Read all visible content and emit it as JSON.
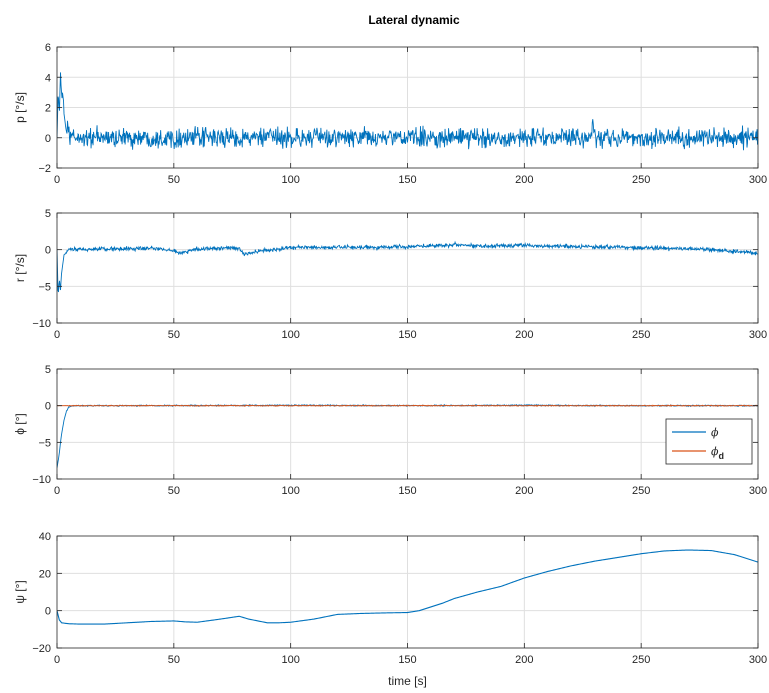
{
  "figure_title": "Lateral dynamic",
  "colors": {
    "primary": "#0072BD",
    "secondary": "#D95319",
    "axis": "#262626",
    "grid": "#DFDFDF"
  },
  "chart_data": [
    {
      "id": "p",
      "type": "line",
      "ylabel": "p [°/s]",
      "xlabel": "",
      "xlim": [
        0,
        300
      ],
      "ylim": [
        -2,
        6
      ],
      "xticks": [
        0,
        50,
        100,
        150,
        200,
        250,
        300
      ],
      "yticks": [
        -2,
        0,
        2,
        4,
        6
      ],
      "grid": true,
      "series": [
        {
          "color": "#0072BD",
          "x": [
            0,
            0.5,
            1,
            1.5,
            2,
            2.5,
            3,
            3.5,
            4,
            4.5,
            5,
            6,
            8,
            10,
            20,
            30,
            50,
            80,
            100,
            150,
            200,
            228,
            229,
            230,
            231,
            250,
            280,
            300
          ],
          "y": [
            0,
            3.2,
            1.5,
            4.2,
            2.6,
            3.0,
            1.7,
            1.0,
            0.4,
            0.6,
            0.1,
            0.05,
            0,
            0,
            0,
            0,
            0,
            0,
            0,
            0,
            0,
            0,
            0.8,
            0,
            0,
            0,
            0,
            0
          ],
          "noise": 0.32
        }
      ]
    },
    {
      "id": "r",
      "type": "line",
      "ylabel": "r [°/s]",
      "xlabel": "",
      "xlim": [
        0,
        300
      ],
      "ylim": [
        -10,
        5
      ],
      "xticks": [
        0,
        50,
        100,
        150,
        200,
        250,
        300
      ],
      "yticks": [
        -10,
        -5,
        0,
        5
      ],
      "grid": true,
      "series": [
        {
          "color": "#0072BD",
          "x": [
            0,
            0.5,
            1,
            1.5,
            2,
            2.5,
            3,
            4,
            5,
            10,
            20,
            30,
            40,
            50,
            52,
            60,
            70,
            78,
            80,
            85,
            100,
            130,
            150,
            170,
            180,
            200,
            210,
            250,
            280,
            300
          ],
          "y": [
            0,
            -6.5,
            -4,
            -5.5,
            -3,
            -2,
            -0.8,
            -0.3,
            0,
            0,
            0.1,
            0.1,
            0.2,
            -0.1,
            -0.5,
            0.1,
            0.2,
            0.2,
            -0.6,
            -0.3,
            0.3,
            0.3,
            0.4,
            0.7,
            0.5,
            0.6,
            0.5,
            0.3,
            0,
            -0.5
          ],
          "noise": 0.14
        }
      ]
    },
    {
      "id": "phi",
      "type": "line",
      "ylabel": "ϕ [°]",
      "xlabel": "",
      "xlim": [
        0,
        300
      ],
      "ylim": [
        -10,
        5
      ],
      "xticks": [
        0,
        50,
        100,
        150,
        200,
        250,
        300
      ],
      "yticks": [
        -10,
        -5,
        0,
        5
      ],
      "grid": true,
      "legend": {
        "placement": "right",
        "entries": [
          "ϕ",
          "ϕ_d"
        ]
      },
      "series": [
        {
          "name": "ϕ",
          "color": "#0072BD",
          "x": [
            0,
            0.5,
            1,
            1.5,
            2,
            3,
            4,
            5,
            6,
            8,
            10,
            50,
            100,
            150,
            200,
            250,
            300
          ],
          "y": [
            -8.5,
            -7.5,
            -6.5,
            -5.0,
            -3.8,
            -2.0,
            -0.8,
            -0.2,
            -0.05,
            0,
            0,
            0,
            0.05,
            0,
            0.05,
            0,
            0
          ],
          "noise": 0.04
        },
        {
          "name": "ϕ_d",
          "color": "#D95319",
          "x": [
            0,
            300
          ],
          "y": [
            0,
            0
          ],
          "noise": 0.03
        }
      ]
    },
    {
      "id": "psi",
      "type": "line",
      "ylabel": "ψ [°]",
      "xlabel": "time [s]",
      "xlim": [
        0,
        300
      ],
      "ylim": [
        -20,
        40
      ],
      "xticks": [
        0,
        50,
        100,
        150,
        200,
        250,
        300
      ],
      "yticks": [
        -20,
        0,
        20,
        40
      ],
      "grid": true,
      "series": [
        {
          "color": "#0072BD",
          "x": [
            0,
            1,
            2,
            5,
            10,
            20,
            30,
            40,
            50,
            55,
            60,
            70,
            78,
            82,
            90,
            95,
            100,
            110,
            120,
            130,
            140,
            150,
            155,
            160,
            165,
            170,
            180,
            190,
            200,
            210,
            220,
            230,
            240,
            250,
            260,
            270,
            280,
            290,
            300
          ],
          "y": [
            0,
            -5,
            -6.5,
            -7,
            -7.2,
            -7.2,
            -6.5,
            -5.8,
            -5.5,
            -6,
            -6.2,
            -4.5,
            -3,
            -4.5,
            -6.5,
            -6.5,
            -6.2,
            -4.5,
            -2,
            -1.5,
            -1.2,
            -1,
            0,
            2,
            4,
            6.5,
            10,
            13,
            17.5,
            21,
            24,
            26.5,
            28.5,
            30.5,
            32,
            32.5,
            32.2,
            30,
            26
          ]
        }
      ]
    }
  ]
}
